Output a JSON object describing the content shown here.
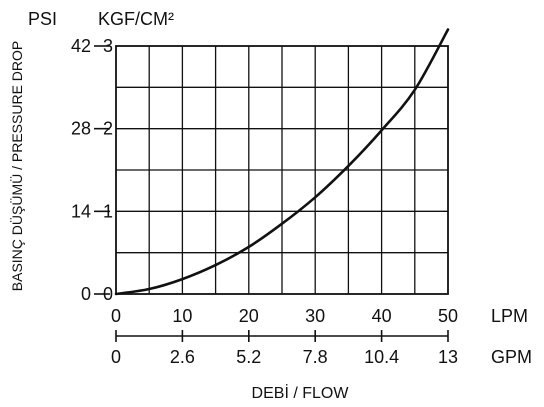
{
  "chart_data": {
    "type": "line",
    "title": "",
    "unit_psi": "PSI",
    "unit_kgf": "KGF/CM²",
    "ylabel": "BASINÇ DÜŞÜMÜ / PRESSURE DROP",
    "xlabel": "DEBİ / FLOW",
    "x_unit_lpm": "LPM",
    "x_unit_gpm": "GPM",
    "xlim": [
      0,
      50
    ],
    "ylim": [
      0,
      3
    ],
    "x_ticks_lpm": [
      "0",
      "10",
      "20",
      "30",
      "40",
      "50"
    ],
    "x_ticks_gpm": [
      "0",
      "2.6",
      "5.2",
      "7.8",
      "10.4",
      "13"
    ],
    "y_ticks_kgf": [
      "0",
      "1",
      "2",
      "3"
    ],
    "y_ticks_psi": [
      "0",
      "14",
      "28",
      "42"
    ],
    "grid": true,
    "series": [
      {
        "x": [
          0,
          5,
          10,
          15,
          20,
          25,
          30,
          35,
          40,
          45,
          50
        ],
        "y": [
          0,
          0.06,
          0.18,
          0.35,
          0.57,
          0.85,
          1.17,
          1.55,
          1.98,
          2.47,
          3.2
        ]
      }
    ],
    "colors": {
      "line": "#111111",
      "grid": "#111111"
    }
  }
}
